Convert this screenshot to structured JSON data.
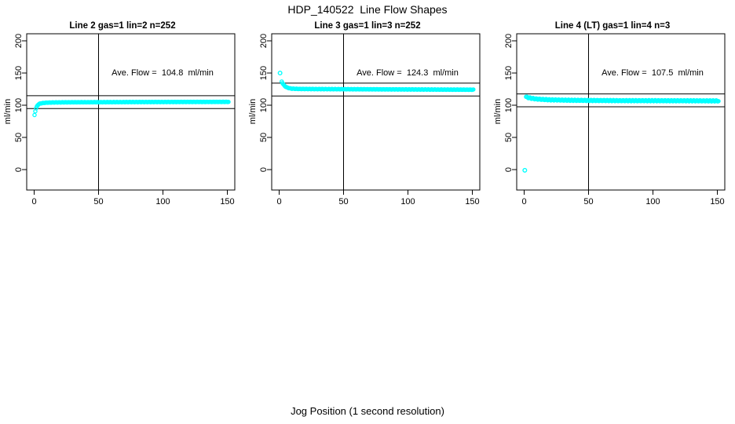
{
  "page": {
    "title": "HDP_140522  Line Flow Shapes",
    "xlabel": "Jog Position (1 second resolution)",
    "background": "#FFFFFF",
    "text_color": "#000000"
  },
  "chart_data": {
    "type": "scatter",
    "layout": "1 row x 3 panels, legend none, grid off",
    "title": "HDP_140522  Line Flow Shapes",
    "xlabel": "Jog Position (1 second resolution)",
    "ylabel": "ml/min",
    "x_ticks": [
      0,
      50,
      100,
      150
    ],
    "y_ticks": [
      0,
      50,
      100,
      150,
      200
    ],
    "xlim": [
      -6,
      156
    ],
    "ylim": [
      -30,
      211
    ],
    "marker": "open-circle",
    "marker_color": "#00FFFF",
    "line_color": "#000000",
    "series_end_x": 151,
    "annotation_y_value": 150,
    "annotation_x_value": 100,
    "panels": [
      {
        "title": "Line 2 gas=1 lin=2 n=252",
        "n": 252,
        "ave_flow": 104.8,
        "ave_flow_label": "Ave. Flow =  104.8  ml/min",
        "vline_x": 50,
        "hlines": [
          114.8,
          94.8
        ],
        "series": [
          [
            0.3,
            85
          ],
          [
            0.8,
            90
          ],
          [
            1.4,
            94.5
          ],
          [
            2,
            97.5
          ],
          [
            2.7,
            100
          ],
          [
            3.5,
            101.5
          ],
          [
            4.5,
            102.5
          ],
          [
            6,
            103.2
          ],
          [
            8,
            103.7
          ],
          [
            10,
            104
          ],
          [
            15,
            104.3
          ],
          [
            25,
            104.5
          ],
          [
            50,
            104.7
          ],
          [
            75,
            104.9
          ],
          [
            100,
            105
          ],
          [
            125,
            105.1
          ],
          [
            151,
            105.2
          ]
        ],
        "outliers": []
      },
      {
        "title": "Line 3 gas=1 lin=3 n=252",
        "n": 252,
        "ave_flow": 124.3,
        "ave_flow_label": "Ave. Flow =  124.3  ml/min",
        "vline_x": 50,
        "hlines": [
          134.3,
          114.3
        ],
        "series": [
          [
            2,
            137
          ],
          [
            3,
            133
          ],
          [
            4,
            130.5
          ],
          [
            5,
            128.8
          ],
          [
            6,
            127.6
          ],
          [
            8,
            126.3
          ],
          [
            10,
            125.7
          ],
          [
            15,
            125.3
          ],
          [
            25,
            125.1
          ],
          [
            50,
            124.9
          ],
          [
            75,
            124.7
          ],
          [
            100,
            124.5
          ],
          [
            125,
            124.3
          ],
          [
            151,
            124.1
          ]
        ],
        "outliers": [
          [
            0.7,
            150
          ]
        ]
      },
      {
        "title": "Line 4 (LT) gas=1 lin=4 n=3",
        "n": 3,
        "ave_flow": 107.5,
        "ave_flow_label": "Ave. Flow =  107.5  ml/min",
        "vline_x": 50,
        "hlines": [
          117.5,
          97.5
        ],
        "series": [
          [
            1.5,
            112.8
          ],
          [
            2,
            112.5
          ],
          [
            3,
            112
          ],
          [
            4,
            111.5
          ],
          [
            5,
            111
          ],
          [
            7,
            110.3
          ],
          [
            10,
            109.6
          ],
          [
            15,
            108.9
          ],
          [
            20,
            108.4
          ],
          [
            30,
            107.9
          ],
          [
            40,
            107.6
          ],
          [
            50,
            107.4
          ],
          [
            75,
            107.1
          ],
          [
            100,
            107
          ],
          [
            125,
            106.9
          ],
          [
            151,
            106.7
          ]
        ],
        "outliers": [
          [
            0.5,
            -1
          ]
        ]
      }
    ]
  }
}
